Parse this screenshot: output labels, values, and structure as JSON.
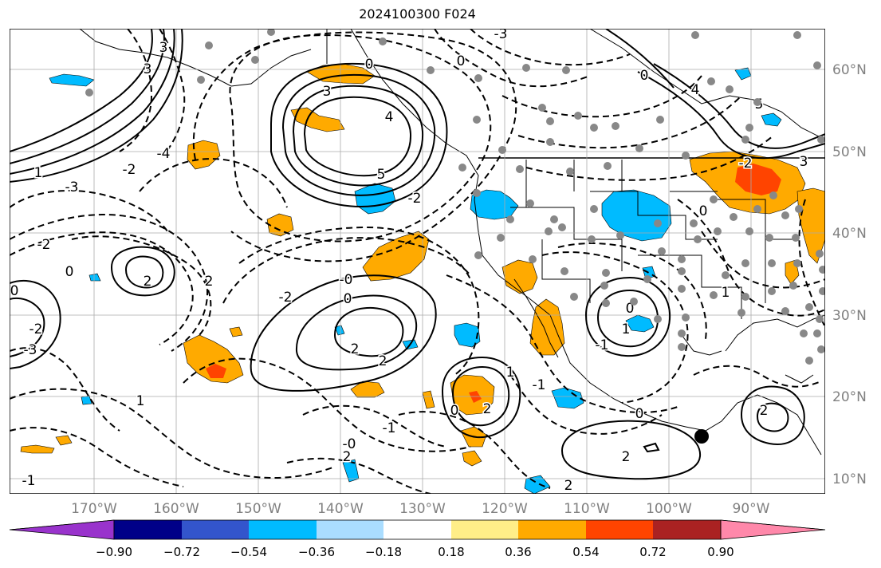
{
  "title": "2024100300 F024",
  "map": {
    "lon_labels": [
      "170°W",
      "160°W",
      "150°W",
      "140°W",
      "130°W",
      "120°W",
      "110°W",
      "100°W",
      "90°W"
    ],
    "lat_labels": [
      "60°N",
      "50°N",
      "40°N",
      "30°N",
      "20°N",
      "10°N"
    ],
    "grid": true
  },
  "colorbar": {
    "ticks": [
      "−0.90",
      "−0.72",
      "−0.54",
      "−0.36",
      "−0.18",
      "0.18",
      "0.36",
      "0.54",
      "0.72",
      "0.90"
    ],
    "colors": [
      "#9933cc",
      "#000088",
      "#3355cc",
      "#00bbff",
      "#aaddff",
      "#ffffff",
      "#ffee88",
      "#ffaa00",
      "#ff4400",
      "#aa2222",
      "#ff88aa"
    ]
  },
  "contour_labels": [
    "3",
    "3",
    "0",
    "3",
    "0",
    "-3",
    "4",
    "5",
    "-2",
    "5",
    "4",
    "1",
    "-2",
    "-3",
    "-4",
    "-2",
    "2",
    "0",
    "2",
    "-2",
    "-0",
    "0",
    "2",
    "2",
    "1",
    "-1",
    "-0",
    "2",
    "1",
    "0",
    "-1",
    "0",
    "2",
    "1",
    "0",
    "-1",
    "0",
    "1",
    "2",
    "0",
    "-2",
    "-3",
    "3",
    "0",
    "-1",
    "2",
    "2",
    "-2"
  ],
  "palette": {
    "blue": "#00bbff",
    "orange": "#ffaa00",
    "red": "#ff4400",
    "station": "#888888"
  }
}
